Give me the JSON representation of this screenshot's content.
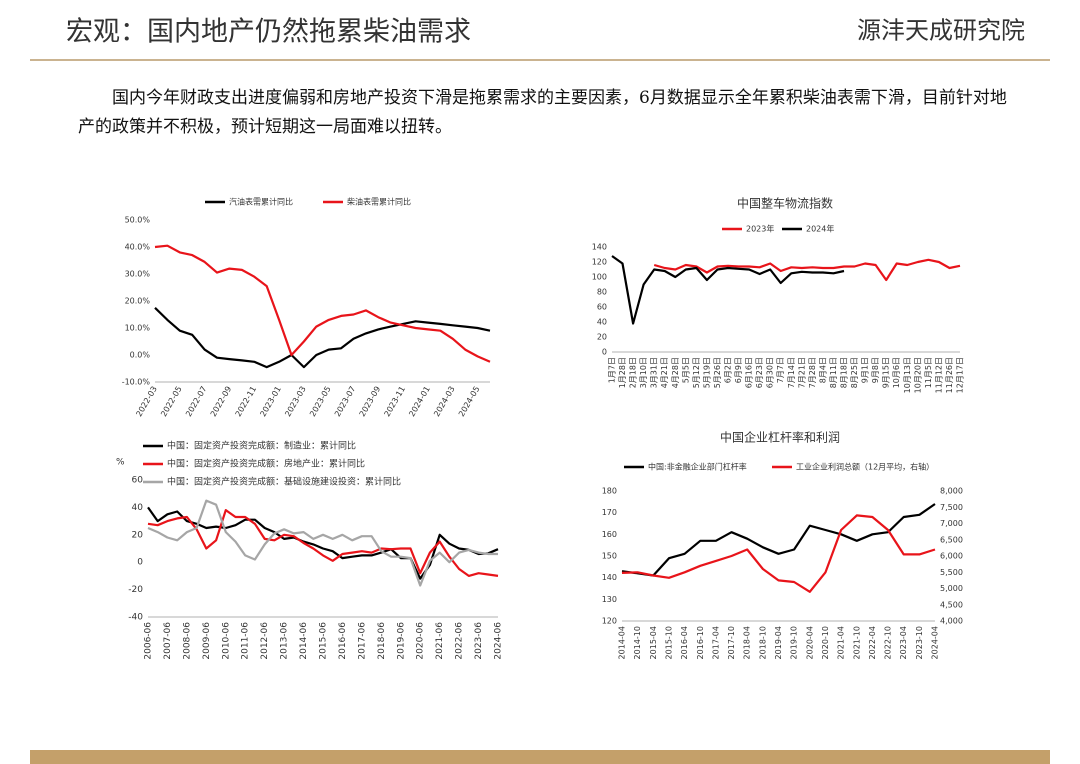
{
  "header": {
    "title": "宏观：国内地产仍然拖累柴油需求",
    "logo": "源沣天成研究院"
  },
  "body": "国内今年财政支出进度偏弱和房地产投资下滑是拖累需求的主要因素，6月数据显示全年累积柴油表需下滑，目前针对地产的政策并不积极，预计短期这一局面难以扭转。",
  "chart_data": [
    {
      "type": "line",
      "categories": [
        "2022-03",
        null,
        "2022-05",
        null,
        "2022-07",
        null,
        "2022-09",
        null,
        "2022-11",
        null,
        "2023-01",
        null,
        "2023-03",
        null,
        "2023-05",
        null,
        "2023-07",
        null,
        "2023-09",
        null,
        "2023-11",
        null,
        "2024-01",
        null,
        "2024-03",
        null,
        "2024-05",
        null
      ],
      "series": [
        {
          "name": "汽油表需累计同比",
          "color": "#000000",
          "values": [
            17.5,
            13,
            9,
            7.5,
            2,
            -1,
            -1.5,
            -2,
            -2.5,
            -4.5,
            -2.5,
            0,
            -4.5,
            0,
            2,
            2.5,
            6,
            8,
            9.5,
            10.5,
            11.5,
            12.5,
            12,
            11.5,
            11,
            10.5,
            10,
            9
          ]
        },
        {
          "name": "柴油表需累计同比",
          "color": "#e8141a",
          "values": [
            40,
            40.5,
            38,
            37,
            34.5,
            30.5,
            32,
            31.5,
            29,
            25.5,
            13,
            0,
            5,
            10.5,
            13,
            14.5,
            15,
            16.5,
            14,
            12,
            11,
            10,
            9.5,
            9,
            6,
            2,
            -0.5,
            -2.5
          ]
        }
      ],
      "ylim": [
        -10,
        50
      ],
      "yticks": [
        {
          "value": -10,
          "label": "-10.0%"
        },
        {
          "value": 0,
          "label": "0.0%"
        },
        {
          "value": 10,
          "label": "10.0%"
        },
        {
          "value": 20,
          "label": "20.0%"
        },
        {
          "value": 30,
          "label": "30.0%"
        },
        {
          "value": 40,
          "label": "40.0%"
        },
        {
          "value": 50,
          "label": "50.0%"
        }
      ],
      "grid": false
    },
    {
      "type": "line",
      "title": "中国整车物流指数",
      "categories": [
        "1月7日",
        "1月28日",
        "2月18日",
        "3月10日",
        "3月31日",
        "4月21日",
        "4月28日",
        "5月5日",
        "5月12日",
        "5月19日",
        "5月26日",
        "6月2日",
        "6月9日",
        "6月16日",
        "6月23日",
        "6月30日",
        "7月7日",
        "7月14日",
        "7月21日",
        "7月28日",
        "8月4日",
        "8月11日",
        "8月18日",
        "8月25日",
        "9月1日",
        "9月8日",
        "9月15日",
        "10月6日",
        "10月13日",
        "10月20日",
        "11月5日",
        "11月12日",
        "11月26日",
        "12月17日"
      ],
      "series": [
        {
          "name": "2023年",
          "color": "#e8141a",
          "values": [
            null,
            null,
            null,
            null,
            116,
            112,
            110,
            116,
            114,
            106,
            114,
            115,
            114,
            114,
            113,
            118,
            108,
            113,
            112,
            113,
            112,
            112,
            114,
            114,
            118,
            116,
            96,
            118,
            116,
            120,
            123,
            120,
            112,
            115
          ]
        },
        {
          "name": "2024年",
          "color": "#000000",
          "values": [
            128,
            118,
            38,
            90,
            110,
            108,
            100,
            110,
            112,
            96,
            110,
            112,
            111,
            110,
            104,
            110,
            92,
            105,
            107,
            106,
            106,
            105,
            108,
            null,
            null,
            null,
            null,
            null,
            null,
            null,
            null,
            null,
            null,
            null
          ]
        }
      ],
      "ylim": [
        0,
        140
      ],
      "yticks": [
        0,
        20,
        40,
        60,
        80,
        100,
        120,
        140
      ],
      "grid": false
    },
    {
      "type": "line",
      "unit_label": "%",
      "categories": [
        "2006-06",
        null,
        "2007-06",
        null,
        "2008-06",
        null,
        "2009-06",
        null,
        "2010-06",
        null,
        "2011-06",
        null,
        "2012-06",
        null,
        "2013-06",
        null,
        "2014-06",
        null,
        "2015-06",
        null,
        "2016-06",
        null,
        "2017-06",
        null,
        "2018-06",
        null,
        "2019-06",
        null,
        "2020-06",
        null,
        "2021-06",
        null,
        "2022-06",
        null,
        "2023-06",
        null,
        "2024-06"
      ],
      "series": [
        {
          "name": "中国：固定资产投资完成额：制造业：累计同比",
          "color": "#000000",
          "values": [
            40,
            30,
            35,
            37,
            30,
            28,
            25,
            26,
            25,
            27,
            31,
            31,
            25,
            22,
            17,
            18,
            15,
            13,
            10,
            8,
            3,
            4,
            5,
            5,
            7,
            9.5,
            3,
            3,
            -12,
            -2,
            20,
            13.5,
            10,
            9,
            6,
            6.5,
            9.5
          ]
        },
        {
          "name": "中国：固定资产投资完成额：房地产业：累计同比",
          "color": "#e8141a",
          "values": [
            28,
            27,
            30,
            32,
            33,
            24,
            10,
            16,
            38,
            33,
            33,
            28,
            17,
            16,
            20,
            19,
            14,
            10,
            5,
            1,
            6,
            7,
            8,
            7,
            10,
            9.5,
            10,
            10,
            -8,
            7,
            15,
            4,
            -5,
            -10,
            -8,
            -9,
            -10
          ]
        },
        {
          "name": "中国：固定资产投资完成额：基础设施建设投资：累计同比",
          "color": "#a6a6a6",
          "values": [
            25,
            22,
            18,
            16,
            22,
            25,
            45,
            42,
            22,
            15,
            5,
            2,
            13,
            21,
            24,
            21,
            22,
            17,
            20,
            17,
            20,
            16,
            19,
            19,
            8,
            4,
            4,
            3,
            -17,
            1,
            7,
            0,
            7,
            9,
            7,
            6,
            6
          ]
        }
      ],
      "ylim": [
        -40,
        60
      ],
      "yticks": [
        -40,
        -20,
        0,
        20,
        40,
        60
      ],
      "grid": false
    },
    {
      "type": "line",
      "title": "中国企业杠杆率和利润",
      "categories": [
        "2014-04",
        "2014-10",
        "2015-04",
        "2015-10",
        "2016-04",
        "2016-10",
        "2017-04",
        "2017-10",
        "2018-04",
        "2018-10",
        "2019-04",
        "2019-10",
        "2020-04",
        "2020-10",
        "2021-04",
        "2021-10",
        "2022-04",
        "2022-10",
        "2023-04",
        "2023-10",
        "2024-04"
      ],
      "series": [
        {
          "name": "中国:非金融企业部门杠杆率",
          "color": "#000000",
          "values": [
            143,
            142,
            141,
            149,
            151,
            157,
            157,
            161,
            158,
            154,
            151,
            153,
            164,
            162,
            160,
            157,
            160,
            161,
            168,
            169,
            174
          ]
        },
        {
          "name": "工业企业利润总额（12月平均，右轴）",
          "color": "#e8141a",
          "axis": "y2",
          "values": [
            5480,
            5500,
            5400,
            5330,
            5500,
            5700,
            5850,
            6000,
            6200,
            5600,
            5250,
            5200,
            4900,
            5500,
            6800,
            7250,
            7200,
            6800,
            6050,
            6050,
            6200
          ]
        }
      ],
      "ylim": [
        120,
        180
      ],
      "yticks": [
        120,
        130,
        140,
        150,
        160,
        170,
        180
      ],
      "y2lim": [
        4000,
        8000
      ],
      "y2ticks": [
        {
          "value": 4000,
          "label": "4,000"
        },
        {
          "value": 4500,
          "label": "4,500"
        },
        {
          "value": 5000,
          "label": "5,000"
        },
        {
          "value": 5500,
          "label": "5,500"
        },
        {
          "value": 6000,
          "label": "6,000"
        },
        {
          "value": 6500,
          "label": "6,500"
        },
        {
          "value": 7000,
          "label": "7,000"
        },
        {
          "value": 7500,
          "label": "7,500"
        },
        {
          "value": 8000,
          "label": "8,000"
        }
      ],
      "grid": false
    }
  ]
}
